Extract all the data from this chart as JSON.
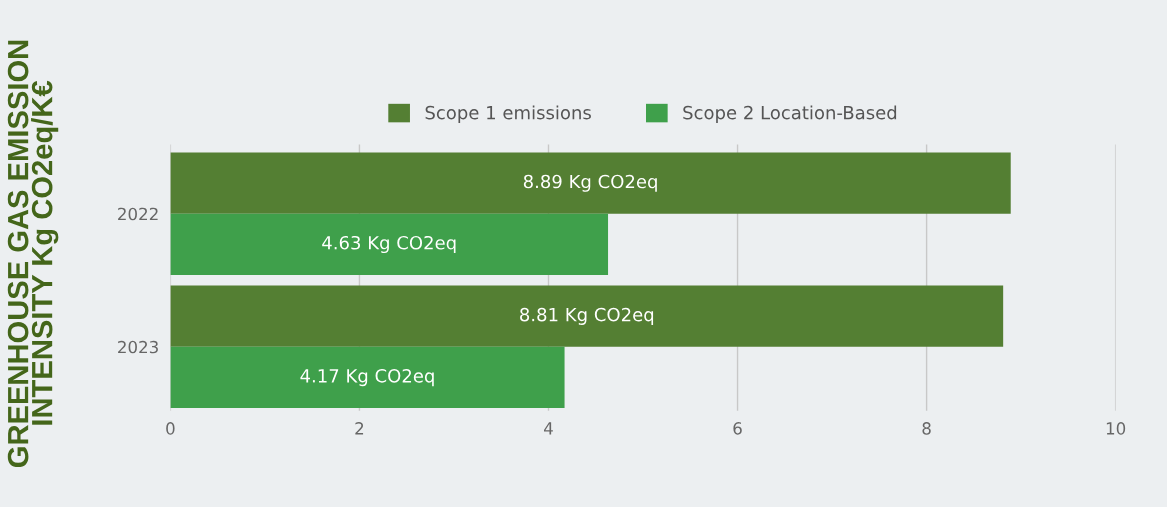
{
  "chart_data": {
    "type": "bar",
    "orientation": "horizontal",
    "ylabel": "GREENHOUSE GAS EMISSION\nINTENSITY Kg CO2eq/K€",
    "categories": [
      "2022",
      "2023"
    ],
    "series": [
      {
        "name": "Scope 1 emissions",
        "color": "#547f33",
        "values": [
          8.89,
          8.81
        ],
        "value_labels": [
          "8.89 Kg CO2eq",
          "8.81 Kg CO2eq"
        ]
      },
      {
        "name": "Scope 2 Location-Based",
        "color": "#3fa04b",
        "values": [
          4.63,
          4.17
        ],
        "value_labels": [
          "4.63 Kg CO2eq",
          "4.17 Kg CO2eq"
        ]
      }
    ],
    "xlim": [
      0,
      10
    ],
    "xticks": [
      0,
      2,
      4,
      6,
      8,
      10
    ],
    "grid": "x",
    "legend": "top"
  }
}
